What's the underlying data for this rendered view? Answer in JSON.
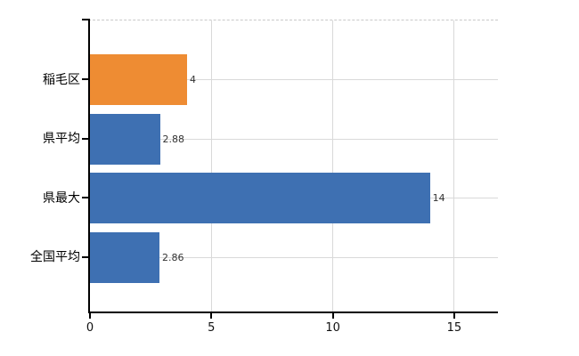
{
  "chart_data": {
    "type": "bar",
    "orientation": "horizontal",
    "title": "",
    "xlabel": "",
    "ylabel": "",
    "categories": [
      "稲毛区",
      "県平均",
      "県最大",
      "全国平均"
    ],
    "values": [
      4,
      2.88,
      14,
      2.86
    ],
    "value_labels": [
      "4",
      "2.88",
      "14",
      "2.86"
    ],
    "bar_colors": [
      "#EE8C33",
      "#3E70B2",
      "#3E70B2",
      "#3E70B2"
    ],
    "xlim": [
      0,
      16.8
    ],
    "x_ticks": [
      0,
      5,
      10,
      15
    ],
    "x_tick_labels": [
      "0",
      "5",
      "10",
      "15"
    ],
    "grid": "on",
    "legend": "none",
    "colors": {
      "bar_blue": "#3E70B2",
      "bar_orange": "#EE8C33",
      "gridline": "#D9D9D9",
      "plot_top_dashed_line": "#C9C9C9",
      "axis": "#000000",
      "value_label_text": "#333333",
      "tick_label_text": "#111111",
      "background": "#FFFFFF"
    }
  }
}
